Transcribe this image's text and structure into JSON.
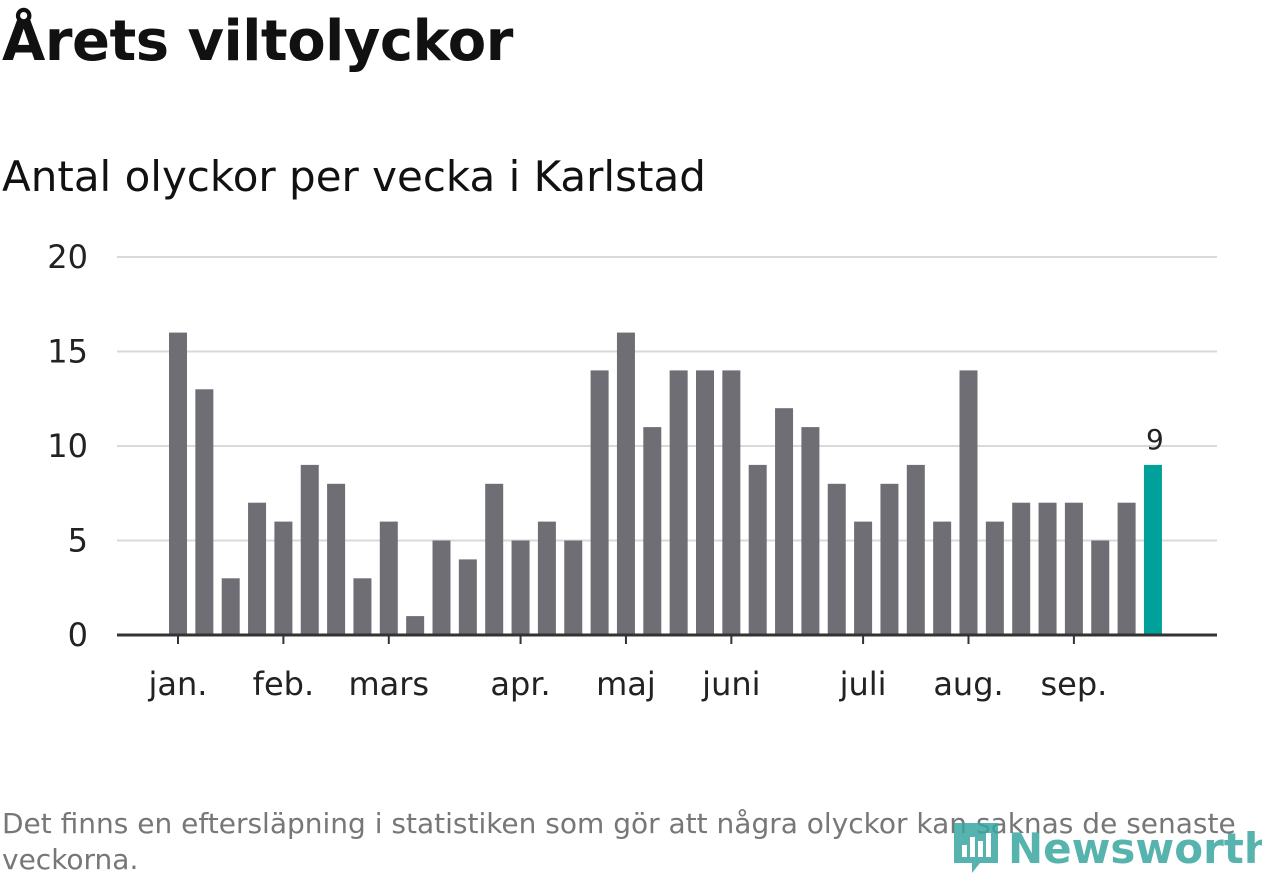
{
  "header": {
    "title": "Årets viltolyckor",
    "subtitle": "Antal olyckor per vecka i Karlstad"
  },
  "footnote": "Det finns en eftersläpning i statistiken som gör att några olyckor kan saknas de senaste veckorna.",
  "logo": {
    "text": "Newsworthy",
    "icon": "newsworthy-logo-icon"
  },
  "colors": {
    "bar": "#6f6e74",
    "highlight": "#00a19a",
    "grid": "#d9d9d9",
    "axis": "#333333"
  },
  "chart_data": {
    "type": "bar",
    "title": "Antal olyckor per vecka i Karlstad",
    "xlabel": "",
    "ylabel": "",
    "ylim": [
      0,
      20
    ],
    "yticks": [
      0,
      5,
      10,
      15,
      20
    ],
    "grid": true,
    "values": [
      16,
      13,
      3,
      7,
      6,
      9,
      8,
      3,
      6,
      1,
      5,
      4,
      8,
      5,
      6,
      5,
      14,
      16,
      11,
      14,
      14,
      14,
      9,
      12,
      11,
      8,
      6,
      8,
      9,
      6,
      14,
      6,
      7,
      7,
      7,
      5,
      7,
      9
    ],
    "month_labels": [
      {
        "label": "jan.",
        "week": 0
      },
      {
        "label": "feb.",
        "week": 4
      },
      {
        "label": "mars",
        "week": 8
      },
      {
        "label": "apr.",
        "week": 13
      },
      {
        "label": "maj",
        "week": 17
      },
      {
        "label": "juni",
        "week": 21
      },
      {
        "label": "juli",
        "week": 26
      },
      {
        "label": "aug.",
        "week": 30
      },
      {
        "label": "sep.",
        "week": 34
      }
    ],
    "highlight_index": 37,
    "data_labels": [
      {
        "week": 37,
        "text": "9"
      }
    ]
  }
}
